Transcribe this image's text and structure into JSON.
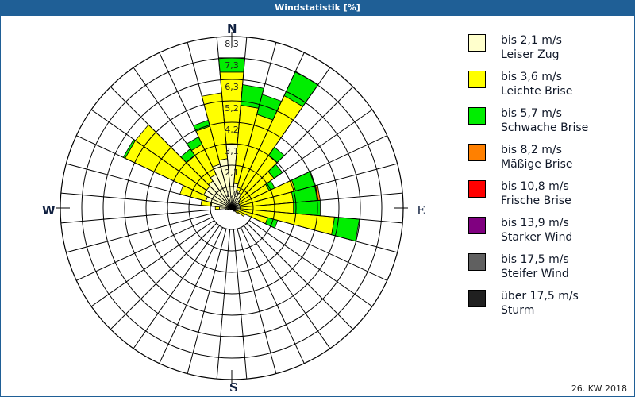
{
  "window": {
    "title": "Windstatistik [%]"
  },
  "compass": {
    "n": "N",
    "e": "E",
    "s": "S",
    "w": "W"
  },
  "footer": {
    "period": "26. KW 2018"
  },
  "legend": [
    {
      "range": "bis 2,1 m/s",
      "label": "Leiser Zug",
      "color": "#ffffcc"
    },
    {
      "range": "bis 3,6 m/s",
      "label": "Leichte Brise",
      "color": "#ffff00"
    },
    {
      "range": "bis 5,7 m/s",
      "label": "Schwache Brise",
      "color": "#00ee00"
    },
    {
      "range": "bis 8,2 m/s",
      "label": "Mäßige Brise",
      "color": "#ff8000"
    },
    {
      "range": "bis 10,8 m/s",
      "label": "Frische Brise",
      "color": "#ff0000"
    },
    {
      "range": "bis 13,9 m/s",
      "label": "Starker Wind",
      "color": "#800080"
    },
    {
      "range": "bis 17,5 m/s",
      "label": "Steifer Wind",
      "color": "#606060"
    },
    {
      "range": "über 17,5 m/s",
      "label": "Sturm",
      "color": "#202020"
    }
  ],
  "chart_data": {
    "type": "polar-stacked-bar",
    "title": "Windstatistik [%]",
    "subtitle": "26. KW 2018",
    "radial_unit": "%",
    "radial_ticks": [
      "1,0",
      "2,1",
      "3,1",
      "4,2",
      "5,2",
      "6,3",
      "7,3",
      "8,3"
    ],
    "radial_max": 8.3,
    "sector_width_deg": 10,
    "categories_speed": [
      "bis 2,1 m/s",
      "bis 3,6 m/s",
      "bis 5,7 m/s",
      "bis 8,2 m/s",
      "bis 10,8 m/s",
      "bis 13,9 m/s",
      "bis 17,5 m/s",
      "über 17,5 m/s"
    ],
    "sectors": [
      {
        "dir": 0,
        "values": [
          3.1,
          3.5,
          0.7,
          0,
          0,
          0,
          0,
          0
        ]
      },
      {
        "dir": 10,
        "values": [
          1.2,
          3.8,
          1.0,
          0,
          0,
          0,
          0,
          0
        ]
      },
      {
        "dir": 20,
        "values": [
          0.9,
          3.8,
          1.0,
          0,
          0,
          0,
          0,
          0
        ]
      },
      {
        "dir": 30,
        "values": [
          0.8,
          5.2,
          1.3,
          0,
          0,
          0,
          0,
          0
        ]
      },
      {
        "dir": 40,
        "values": [
          0.6,
          2.5,
          0.5,
          0,
          0,
          0,
          0,
          0
        ]
      },
      {
        "dir": 50,
        "values": [
          0.5,
          2.0,
          0.5,
          0,
          0,
          0,
          0,
          0
        ]
      },
      {
        "dir": 60,
        "values": [
          0.4,
          1.6,
          0.3,
          0,
          0,
          0,
          0,
          0
        ]
      },
      {
        "dir": 70,
        "values": [
          0.4,
          2.8,
          1.0,
          0,
          0,
          0,
          0,
          0
        ]
      },
      {
        "dir": 80,
        "values": [
          0.4,
          2.6,
          1.2,
          0.1,
          0,
          0,
          0,
          0
        ]
      },
      {
        "dir": 90,
        "values": [
          0.4,
          2.6,
          1.3,
          0,
          0,
          0,
          0,
          0
        ]
      },
      {
        "dir": 100,
        "values": [
          0.4,
          4.6,
          1.2,
          0,
          0,
          0,
          0,
          0
        ]
      },
      {
        "dir": 110,
        "values": [
          0.3,
          1.5,
          0.5,
          0,
          0,
          0,
          0,
          0
        ]
      },
      {
        "dir": 120,
        "values": [
          0.2,
          0.5,
          0,
          0,
          0,
          0,
          0,
          0
        ]
      },
      {
        "dir": 130,
        "values": [
          0.2,
          0.2,
          0,
          0,
          0,
          0,
          0,
          0
        ]
      },
      {
        "dir": 140,
        "values": [
          0.2,
          0,
          0,
          0,
          0,
          0,
          0,
          0
        ]
      },
      {
        "dir": 150,
        "values": [
          0.1,
          0,
          0,
          0,
          0,
          0,
          0,
          0
        ]
      },
      {
        "dir": 160,
        "values": [
          0.1,
          0,
          0,
          0,
          0,
          0,
          0,
          0
        ]
      },
      {
        "dir": 170,
        "values": [
          0.1,
          0,
          0,
          0,
          0,
          0,
          0,
          0
        ]
      },
      {
        "dir": 180,
        "values": [
          0.1,
          0,
          0,
          0,
          0,
          0,
          0,
          0
        ]
      },
      {
        "dir": 190,
        "values": [
          0.1,
          0,
          0,
          0,
          0,
          0,
          0,
          0
        ]
      },
      {
        "dir": 200,
        "values": [
          0.1,
          0,
          0,
          0,
          0,
          0,
          0,
          0
        ]
      },
      {
        "dir": 210,
        "values": [
          0.1,
          0,
          0,
          0,
          0,
          0,
          0,
          0
        ]
      },
      {
        "dir": 220,
        "values": [
          0.1,
          0,
          0,
          0,
          0,
          0,
          0,
          0
        ]
      },
      {
        "dir": 230,
        "values": [
          0.1,
          0,
          0,
          0,
          0,
          0,
          0,
          0
        ]
      },
      {
        "dir": 240,
        "values": [
          0.1,
          0,
          0,
          0,
          0,
          0,
          0,
          0
        ]
      },
      {
        "dir": 250,
        "values": [
          0.2,
          0,
          0,
          0,
          0,
          0,
          0,
          0
        ]
      },
      {
        "dir": 260,
        "values": [
          0.3,
          0,
          0,
          0,
          0,
          0,
          0,
          0
        ]
      },
      {
        "dir": 270,
        "values": [
          0.6,
          0.2,
          0,
          0,
          0,
          0,
          0,
          0
        ]
      },
      {
        "dir": 280,
        "values": [
          1.0,
          0.5,
          0,
          0,
          0,
          0,
          0,
          0
        ]
      },
      {
        "dir": 290,
        "values": [
          1.3,
          1.3,
          0,
          0,
          0,
          0,
          0,
          0
        ]
      },
      {
        "dir": 300,
        "values": [
          1.5,
          4.2,
          0.1,
          0,
          0,
          0,
          0,
          0
        ]
      },
      {
        "dir": 310,
        "values": [
          1.5,
          4.2,
          0,
          0,
          0,
          0,
          0,
          0
        ]
      },
      {
        "dir": 320,
        "values": [
          1.6,
          1.5,
          0.4,
          0,
          0,
          0,
          0,
          0
        ]
      },
      {
        "dir": 330,
        "values": [
          1.8,
          1.6,
          0.4,
          0,
          0,
          0,
          0,
          0
        ]
      },
      {
        "dir": 340,
        "values": [
          2.2,
          1.9,
          0.3,
          0,
          0,
          0,
          0,
          0
        ]
      },
      {
        "dir": 350,
        "values": [
          2.4,
          3.2,
          0,
          0,
          0,
          0,
          0,
          0
        ]
      }
    ]
  }
}
